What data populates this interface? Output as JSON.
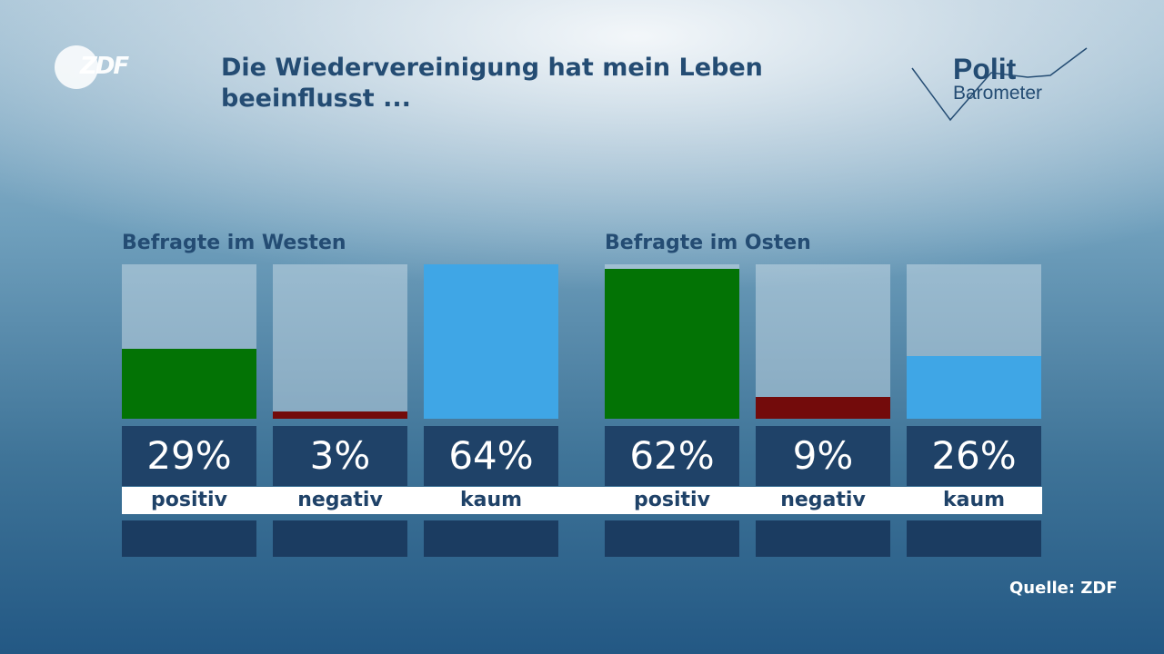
{
  "header": {
    "logo_text": "ZDF",
    "title": "Die Wiedervereinigung hat mein Leben beeinflusst ...",
    "brand_line1": "Polit",
    "brand_line2": "Barometer"
  },
  "colors": {
    "positiv": "#037305",
    "negativ": "#730b0b",
    "kaum": "#3fa6e6",
    "value_box": "#1f4268"
  },
  "chart_data": [
    {
      "type": "bar",
      "title": "Befragte im Westen",
      "categories": [
        "positiv",
        "negativ",
        "kaum"
      ],
      "values": [
        29,
        3,
        64
      ],
      "value_labels": [
        "29%",
        "3%",
        "64%"
      ],
      "ylim": [
        0,
        64
      ]
    },
    {
      "type": "bar",
      "title": "Befragte im Osten",
      "categories": [
        "positiv",
        "negativ",
        "kaum"
      ],
      "values": [
        62,
        9,
        26
      ],
      "value_labels": [
        "62%",
        "9%",
        "26%"
      ],
      "ylim": [
        0,
        64
      ]
    }
  ],
  "footer": {
    "source": "Quelle: ZDF"
  }
}
